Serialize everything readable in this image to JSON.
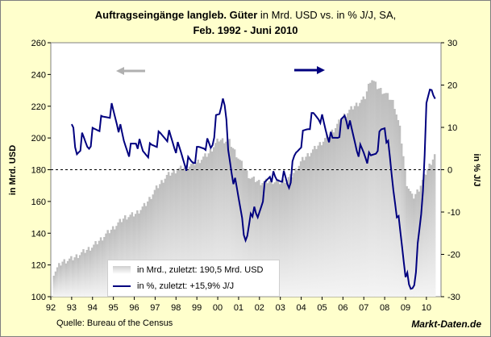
{
  "title": {
    "bold_part": "Auftragseingänge langleb. Güter",
    "normal_part": " in Mrd. USD vs. in % J/J, SA,",
    "line2": "Feb. 1992 - Juni 2010"
  },
  "source": "Quelle: Bureau of the Census",
  "brand": "Markt-Daten.de",
  "colors": {
    "background": "#ffffcc",
    "plot_background": "#ffffff",
    "bars": "#c0c0c0",
    "line": "#00007f",
    "left_arrow": "#b0b0b0",
    "right_arrow": "#00007f"
  },
  "chart_data": {
    "type": "bar+line",
    "x_ticks": [
      "92",
      "93",
      "94",
      "95",
      "96",
      "97",
      "98",
      "99",
      "00",
      "01",
      "02",
      "03",
      "04",
      "05",
      "06",
      "07",
      "08",
      "09",
      "10"
    ],
    "y_left": {
      "label": "in Mrd. USD",
      "range": [
        100,
        260
      ],
      "ticks": [
        "100",
        "120",
        "140",
        "160",
        "180",
        "200",
        "220",
        "240",
        "260"
      ]
    },
    "y_right": {
      "label": "in % J/J",
      "range": [
        -30,
        30
      ],
      "ticks": [
        "-30",
        "-20",
        "-10",
        "0",
        "10",
        "20",
        "30"
      ]
    },
    "reference_line": {
      "axis": "right",
      "value": 0,
      "style": "dashed"
    },
    "legend": [
      {
        "label": "in Mrd., zuletzt: 190,5  Mrd. USD",
        "type": "bar"
      },
      {
        "label": "in %, zuletzt: +15,9% J/J",
        "type": "line"
      }
    ],
    "series": [
      {
        "name": "in Mrd., zuletzt: 190,5  Mrd. USD",
        "type": "bar",
        "axis": "left",
        "anchors": [
          [
            1992.1,
            115
          ],
          [
            1992.5,
            122
          ],
          [
            1993.0,
            124
          ],
          [
            1993.5,
            128
          ],
          [
            1994.0,
            132
          ],
          [
            1994.5,
            138
          ],
          [
            1995.0,
            144
          ],
          [
            1995.5,
            150
          ],
          [
            1996.0,
            152
          ],
          [
            1996.5,
            158
          ],
          [
            1997.0,
            168
          ],
          [
            1997.5,
            176
          ],
          [
            1998.0,
            180
          ],
          [
            1998.5,
            182
          ],
          [
            1999.0,
            185
          ],
          [
            1999.5,
            190
          ],
          [
            2000.0,
            199
          ],
          [
            2000.5,
            198
          ],
          [
            2001.0,
            186
          ],
          [
            2001.5,
            175
          ],
          [
            2002.0,
            172
          ],
          [
            2002.5,
            173
          ],
          [
            2003.0,
            172
          ],
          [
            2003.5,
            176
          ],
          [
            2004.0,
            186
          ],
          [
            2004.5,
            192
          ],
          [
            2005.0,
            198
          ],
          [
            2005.5,
            205
          ],
          [
            2006.0,
            214
          ],
          [
            2006.5,
            220
          ],
          [
            2007.0,
            225
          ],
          [
            2007.3,
            238
          ],
          [
            2007.6,
            232
          ],
          [
            2008.0,
            228
          ],
          [
            2008.4,
            222
          ],
          [
            2008.7,
            205
          ],
          [
            2009.0,
            172
          ],
          [
            2009.3,
            162
          ],
          [
            2009.6,
            168
          ],
          [
            2010.0,
            180
          ],
          [
            2010.4,
            190.5
          ]
        ]
      },
      {
        "name": "in %, zuletzt: +15,9% J/J",
        "type": "line",
        "axis": "right",
        "anchors": [
          [
            1993.0,
            12.5
          ],
          [
            1993.2,
            3.0
          ],
          [
            1993.5,
            7.0
          ],
          [
            1993.8,
            5.5
          ],
          [
            1994.0,
            8.5
          ],
          [
            1994.5,
            11.5
          ],
          [
            1994.9,
            14.5
          ],
          [
            1995.2,
            11.0
          ],
          [
            1995.5,
            6.5
          ],
          [
            1995.8,
            4.5
          ],
          [
            1996.1,
            7.0
          ],
          [
            1996.4,
            4.0
          ],
          [
            1996.8,
            5.0
          ],
          [
            1997.2,
            7.5
          ],
          [
            1997.6,
            8.5
          ],
          [
            1997.9,
            6.0
          ],
          [
            1998.2,
            4.0
          ],
          [
            1998.5,
            1.5
          ],
          [
            1998.8,
            2.0
          ],
          [
            1999.1,
            4.5
          ],
          [
            1999.4,
            6.5
          ],
          [
            1999.7,
            5.0
          ],
          [
            1999.9,
            11.0
          ],
          [
            2000.1,
            13.0
          ],
          [
            2000.3,
            19.5
          ],
          [
            2000.5,
            4.0
          ],
          [
            2000.7,
            -1.0
          ],
          [
            2000.9,
            -5.0
          ],
          [
            2001.2,
            -11.0
          ],
          [
            2001.35,
            -19.0
          ],
          [
            2001.6,
            -9.0
          ],
          [
            2001.9,
            -12.0
          ],
          [
            2002.2,
            -5.0
          ],
          [
            2002.5,
            -1.0
          ],
          [
            2002.8,
            -3.0
          ],
          [
            2003.1,
            -1.0
          ],
          [
            2003.4,
            -4.0
          ],
          [
            2003.7,
            3.0
          ],
          [
            2004.0,
            7.0
          ],
          [
            2004.3,
            10.0
          ],
          [
            2004.6,
            12.5
          ],
          [
            2004.9,
            13.0
          ],
          [
            2005.2,
            9.0
          ],
          [
            2005.5,
            6.5
          ],
          [
            2005.8,
            9.0
          ],
          [
            2006.1,
            13.0
          ],
          [
            2006.4,
            9.0
          ],
          [
            2006.7,
            5.0
          ],
          [
            2007.0,
            4.0
          ],
          [
            2007.3,
            2.0
          ],
          [
            2007.6,
            5.0
          ],
          [
            2007.8,
            8.5
          ],
          [
            2008.0,
            10.5
          ],
          [
            2008.2,
            4.0
          ],
          [
            2008.4,
            -4.0
          ],
          [
            2008.6,
            -10.0
          ],
          [
            2008.8,
            -17.0
          ],
          [
            2009.0,
            -24.0
          ],
          [
            2009.2,
            -29.0
          ],
          [
            2009.4,
            -27.0
          ],
          [
            2009.6,
            -18.0
          ],
          [
            2009.8,
            -8.0
          ],
          [
            2010.0,
            14.0
          ],
          [
            2010.2,
            19.5
          ],
          [
            2010.35,
            18.5
          ],
          [
            2010.45,
            15.9
          ]
        ]
      }
    ]
  }
}
